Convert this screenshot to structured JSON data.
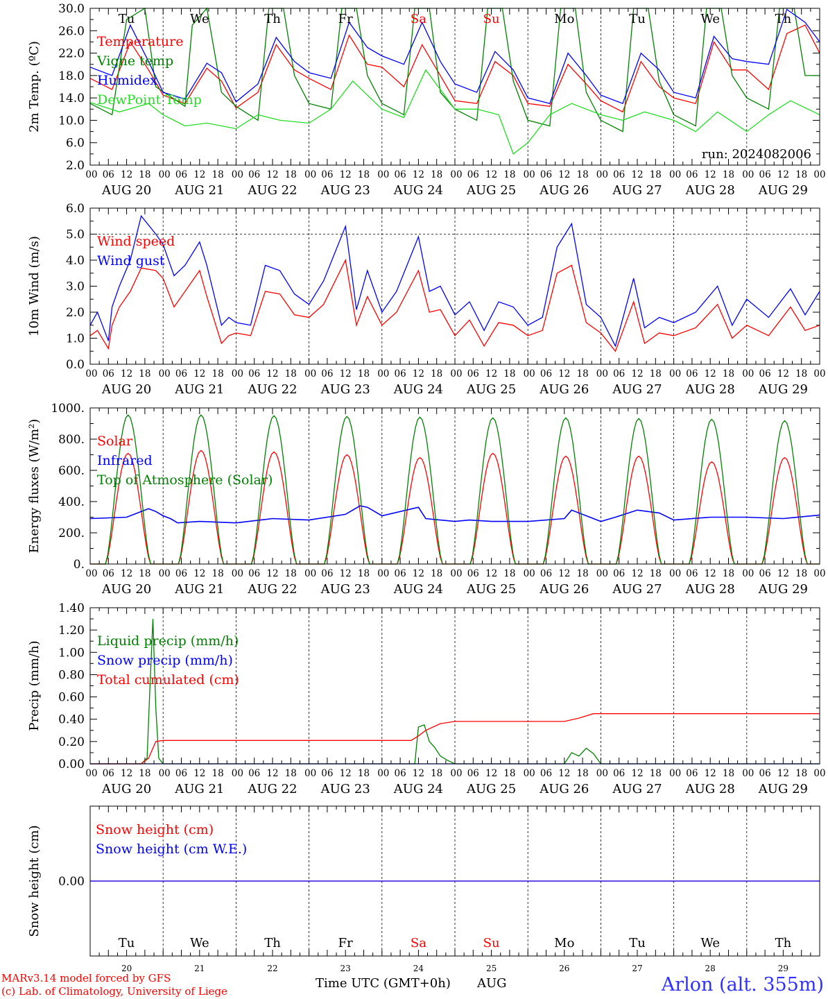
{
  "location_label": "Arlon (alt. 355m)",
  "credits": [
    "MARv3.14 model forced by GFS",
    "(c) Lab. of Climatology, University of Liege"
  ],
  "colors": {
    "red": "#ff0000",
    "green": "#008000",
    "blue": "#0000ff",
    "lime": "#22dd22",
    "axis": "#000000"
  },
  "x_axis": {
    "hour_ticks": [
      "00",
      "06",
      "12",
      "18"
    ],
    "day_labels": [
      "AUG 20",
      "AUG 21",
      "AUG 22",
      "AUG 23",
      "AUG 24",
      "AUG 25",
      "AUG 26",
      "AUG 27",
      "AUG 28",
      "AUG 29"
    ],
    "weekdays": [
      "Tu",
      "We",
      "Th",
      "Fr",
      "Sa",
      "Su",
      "Mo",
      "Tu",
      "We",
      "Th"
    ],
    "weekend_days": [
      "Sa",
      "Su"
    ],
    "day_numbers": [
      "20",
      "21",
      "22",
      "23",
      "24",
      "25",
      "26",
      "27",
      "28",
      "29"
    ],
    "bottom_label": "Time UTC (GMT+0h)",
    "month": "AUG"
  },
  "chart_data": [
    {
      "type": "line",
      "ylabel": "2m Temp. (ºC)",
      "ylim": [
        2,
        30
      ],
      "yticks": [
        "30.0",
        "26.0",
        "22.0",
        "18.0",
        "14.0",
        "10.0",
        "6.0",
        "2.0"
      ],
      "annotation": "run: 2024082006",
      "series": [
        {
          "name": "Temperature",
          "color": "red",
          "x": [
            0,
            0.3,
            0.55,
            0.8,
            1,
            1.3,
            1.6,
            1.8,
            2,
            2.3,
            2.55,
            2.8,
            3,
            3.3,
            3.55,
            3.8,
            4,
            4.3,
            4.55,
            4.8,
            5,
            5.3,
            5.55,
            5.8,
            6,
            6.3,
            6.55,
            6.8,
            7,
            7.3,
            7.55,
            7.8,
            8,
            8.3,
            8.55,
            8.8,
            9,
            9.3,
            9.55,
            9.8,
            10
          ],
          "values": [
            17.5,
            15.5,
            24,
            19,
            14.5,
            13,
            19.3,
            17,
            12.2,
            15,
            23.5,
            19,
            17.5,
            15.5,
            25.2,
            20,
            19.5,
            16,
            23.5,
            18,
            13.5,
            13,
            20.5,
            18,
            13,
            12.5,
            20,
            16.5,
            13.5,
            11.5,
            20.5,
            16,
            14,
            13,
            24,
            19,
            19,
            15.5,
            25.5,
            27,
            22
          ]
        },
        {
          "name": "Vigne temp",
          "color": "green",
          "x": [
            0,
            0.3,
            0.5,
            0.75,
            0.9,
            1.3,
            1.4,
            1.6,
            1.8,
            2,
            2.3,
            2.45,
            2.65,
            2.8,
            3,
            3.3,
            3.45,
            3.65,
            3.8,
            4,
            4.3,
            4.45,
            4.65,
            4.8,
            5,
            5.3,
            5.45,
            5.65,
            5.8,
            6,
            6.3,
            6.45,
            6.65,
            6.8,
            7,
            7.3,
            7.45,
            7.65,
            7.8,
            8,
            8.3,
            8.45,
            8.65,
            8.8,
            9,
            9.3,
            9.45,
            9.65,
            9.8,
            10
          ],
          "values": [
            13,
            11,
            28,
            30,
            16,
            12.5,
            27,
            30,
            15,
            12.5,
            10,
            30,
            30,
            18,
            13,
            12,
            30,
            30,
            18,
            13,
            11,
            30,
            30,
            15,
            12,
            10,
            30,
            30,
            17,
            10,
            9,
            30,
            30,
            15,
            10,
            8,
            30,
            30,
            17,
            11,
            9,
            30,
            30,
            18,
            14,
            12,
            30,
            30,
            18,
            18
          ]
        },
        {
          "name": "Humidex",
          "color": "blue",
          "x": [
            0,
            0.3,
            0.55,
            0.8,
            1,
            1.3,
            1.6,
            1.8,
            2,
            2.3,
            2.55,
            2.8,
            3,
            3.3,
            3.55,
            3.8,
            4,
            4.3,
            4.55,
            4.8,
            5,
            5.3,
            5.55,
            5.8,
            6,
            6.3,
            6.55,
            6.8,
            7,
            7.3,
            7.55,
            7.8,
            8,
            8.3,
            8.55,
            8.8,
            9,
            9.3,
            9.55,
            9.8,
            10
          ],
          "values": [
            19.5,
            18,
            27,
            20.5,
            15,
            13.8,
            20.2,
            18.5,
            13.3,
            16.5,
            24.8,
            20.5,
            18.5,
            17.5,
            27.5,
            23,
            21.5,
            20,
            27.5,
            20.5,
            16.5,
            15,
            22.3,
            19,
            14,
            13,
            22,
            18,
            14.5,
            13,
            22,
            19,
            15,
            14,
            25,
            21,
            20.5,
            20,
            29.8,
            27.5,
            24
          ]
        },
        {
          "name": "DewPoint Temp",
          "color": "lime",
          "x": [
            0,
            0.4,
            0.8,
            1,
            1.3,
            1.6,
            2,
            2.3,
            2.6,
            3,
            3.3,
            3.6,
            4,
            4.3,
            4.6,
            5,
            5.3,
            5.6,
            5.8,
            6,
            6.3,
            6.6,
            7,
            7.3,
            7.6,
            8,
            8.3,
            8.6,
            9,
            9.3,
            9.6,
            10
          ],
          "values": [
            13.2,
            11.5,
            13,
            11,
            9,
            9.5,
            8.5,
            11,
            10,
            9.5,
            12,
            17,
            12,
            10.5,
            19,
            12,
            12,
            11,
            4,
            6,
            11,
            13,
            11,
            10,
            11.5,
            10,
            8,
            11.5,
            8,
            11,
            13.5,
            11
          ]
        }
      ]
    },
    {
      "type": "line",
      "ylabel": "10m Wind (m/s)",
      "ylim": [
        0,
        6
      ],
      "yticks": [
        "6.0",
        "5.0",
        "4.0",
        "3.0",
        "2.0",
        "1.0",
        "0.0"
      ],
      "ref_line": 5,
      "series": [
        {
          "name": "Wind speed",
          "color": "red",
          "x": [
            0,
            0.1,
            0.25,
            0.3,
            0.4,
            0.55,
            0.7,
            0.9,
            1,
            1.15,
            1.3,
            1.5,
            1.6,
            1.8,
            1.9,
            2,
            2.2,
            2.4,
            2.6,
            2.8,
            3,
            3.2,
            3.5,
            3.65,
            3.8,
            4,
            4.2,
            4.5,
            4.65,
            4.8,
            5,
            5.2,
            5.4,
            5.6,
            5.8,
            6,
            6.2,
            6.4,
            6.6,
            6.8,
            7,
            7.2,
            7.45,
            7.6,
            7.8,
            8,
            8.3,
            8.6,
            8.8,
            9,
            9.3,
            9.6,
            9.8,
            10
          ],
          "values": [
            1.1,
            1.3,
            0.6,
            1.5,
            2.2,
            2.8,
            3.7,
            3.6,
            3.3,
            2.2,
            2.8,
            3.6,
            2.6,
            0.8,
            1.1,
            1.2,
            1.1,
            2.8,
            2.7,
            1.9,
            1.8,
            2.3,
            4,
            1.5,
            2.6,
            1.5,
            2,
            3.6,
            2,
            2.1,
            1.1,
            1.7,
            0.7,
            1.6,
            1.5,
            1.1,
            1.3,
            3.5,
            3.8,
            1.6,
            1.2,
            0.5,
            2.4,
            0.8,
            1.2,
            1.1,
            1.4,
            2.3,
            1,
            1.5,
            1.1,
            2.2,
            1.3,
            1.5
          ]
        },
        {
          "name": "Wind gust",
          "color": "blue",
          "x": [
            0,
            0.1,
            0.25,
            0.3,
            0.4,
            0.55,
            0.7,
            0.9,
            1,
            1.15,
            1.3,
            1.5,
            1.6,
            1.8,
            1.9,
            2,
            2.2,
            2.4,
            2.6,
            2.8,
            3,
            3.2,
            3.5,
            3.65,
            3.8,
            4,
            4.2,
            4.5,
            4.65,
            4.8,
            5,
            5.2,
            5.4,
            5.6,
            5.8,
            6,
            6.2,
            6.4,
            6.6,
            6.8,
            7,
            7.2,
            7.45,
            7.6,
            7.8,
            8,
            8.3,
            8.6,
            8.8,
            9,
            9.3,
            9.6,
            9.8,
            10
          ],
          "values": [
            1.5,
            2,
            0.9,
            2.2,
            3,
            4,
            5.7,
            5,
            4.6,
            3.4,
            3.8,
            4.7,
            3.8,
            1.5,
            1.8,
            1.6,
            1.5,
            3.8,
            3.6,
            2.7,
            2.3,
            3.2,
            5.3,
            2.1,
            3.6,
            2,
            2.8,
            4.9,
            2.8,
            3,
            1.9,
            2.4,
            1.3,
            2.4,
            2.2,
            1.5,
            1.8,
            4.5,
            5.4,
            2.3,
            1.8,
            0.7,
            3.3,
            1.4,
            1.8,
            1.6,
            2,
            3,
            1.5,
            2.5,
            1.8,
            2.9,
            1.9,
            2.8
          ]
        }
      ]
    },
    {
      "type": "line",
      "ylabel": "Energy fluxes (W/m²)",
      "ylim": [
        0,
        1100
      ],
      "yticks": [
        "1000.",
        "800.",
        "600.",
        "400.",
        "200.",
        "0."
      ],
      "series": [
        {
          "name": "Solar",
          "color": "red",
          "peaks": [
            780,
            800,
            790,
            770,
            750,
            780,
            760,
            760,
            720,
            750
          ],
          "peak_day_fraction": 0.52
        },
        {
          "name": "Infrared",
          "color": "blue",
          "x": [
            0,
            0.5,
            0.8,
            0.9,
            1,
            1.1,
            1.2,
            1.5,
            2,
            2.5,
            3,
            3.5,
            3.7,
            3.8,
            4,
            4.5,
            4.6,
            5,
            5.2,
            5.5,
            6,
            6.5,
            6.6,
            7,
            7.2,
            7.5,
            7.8,
            8,
            8.5,
            9,
            9.5,
            10
          ],
          "values": [
            320,
            330,
            390,
            370,
            340,
            320,
            290,
            300,
            290,
            320,
            310,
            350,
            410,
            400,
            340,
            400,
            320,
            300,
            310,
            300,
            300,
            320,
            380,
            300,
            330,
            380,
            360,
            310,
            330,
            330,
            320,
            345
          ]
        },
        {
          "name": "Top of Atmosphere (Solar)",
          "color": "green",
          "peaks": [
            1050,
            1050,
            1045,
            1040,
            1035,
            1030,
            1030,
            1025,
            1020,
            1010
          ],
          "peak_day_fraction": 0.52
        }
      ]
    },
    {
      "type": "line",
      "ylabel": "Precip (mm/h)",
      "ylim": [
        0,
        1.4
      ],
      "yticks": [
        "1.40",
        "1.20",
        "1.00",
        "0.80",
        "0.60",
        "0.40",
        "0.20",
        "0.00"
      ],
      "series": [
        {
          "name": "Liquid precip (mm/h)",
          "color": "green",
          "x": [
            0,
            0.7,
            0.78,
            0.82,
            0.86,
            0.9,
            0.94,
            1,
            4,
            4.45,
            4.5,
            4.58,
            4.65,
            4.72,
            4.8,
            4.9,
            5,
            6,
            6.5,
            6.6,
            6.7,
            6.8,
            6.9,
            7,
            10
          ],
          "values": [
            0,
            0,
            0.05,
            0.7,
            1.3,
            0.5,
            0.05,
            0,
            0,
            0,
            0.33,
            0.35,
            0.2,
            0.15,
            0.07,
            0.03,
            0,
            0,
            0,
            0.1,
            0.07,
            0.14,
            0.09,
            0,
            0
          ]
        },
        {
          "name": "Snow precip (mm/h)",
          "color": "blue",
          "x": [
            0,
            10
          ],
          "values": [
            0,
            0
          ]
        },
        {
          "name": "Total cumulated (cm)",
          "color": "red",
          "x": [
            0,
            0.7,
            0.8,
            0.9,
            1,
            4.4,
            4.5,
            4.6,
            4.8,
            5,
            6,
            6.5,
            6.7,
            6.9,
            10
          ],
          "values": [
            0,
            0,
            0.05,
            0.2,
            0.21,
            0.21,
            0.25,
            0.3,
            0.36,
            0.38,
            0.38,
            0.38,
            0.41,
            0.45,
            0.45
          ]
        }
      ]
    },
    {
      "type": "line",
      "ylabel": "Snow height (cm)",
      "yticks": [
        "0.00"
      ],
      "series": [
        {
          "name": "Snow height (cm)",
          "color": "red",
          "x": [
            0,
            10
          ],
          "values": [
            0,
            0
          ]
        },
        {
          "name": "Snow height (cm W.E.)",
          "color": "blue",
          "x": [
            0,
            10
          ],
          "values": [
            0,
            0
          ]
        }
      ]
    }
  ]
}
